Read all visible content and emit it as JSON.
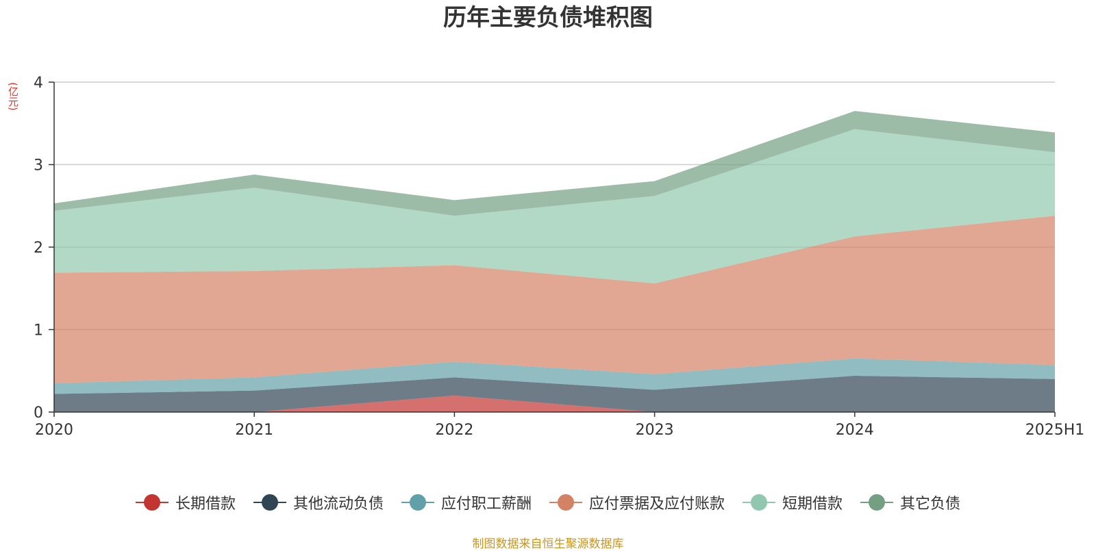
{
  "title": "历年主要负债堆积图",
  "unit_label": "(亿元)",
  "source": "制图数据来自恒生聚源数据库",
  "chart_data": {
    "type": "area",
    "stacked": true,
    "title": "历年主要负债堆积图",
    "ylabel": "(亿元)",
    "x": [
      "2020",
      "2021",
      "2022",
      "2023",
      "2024",
      "2025H1"
    ],
    "ylim": [
      0,
      4
    ],
    "yticks": [
      0,
      1,
      2,
      3,
      4
    ],
    "grid": true,
    "legend_position": "bottom",
    "series": [
      {
        "name": "长期借款",
        "color": "#c23531",
        "values": [
          0.0,
          0.0,
          0.2,
          0.0,
          0.0,
          0.0
        ]
      },
      {
        "name": "其他流动负债",
        "color": "#2f4554",
        "values": [
          0.22,
          0.26,
          0.22,
          0.27,
          0.44,
          0.4
        ]
      },
      {
        "name": "应付职工薪酬",
        "color": "#61a0a8",
        "values": [
          0.13,
          0.16,
          0.19,
          0.19,
          0.21,
          0.17
        ]
      },
      {
        "name": "应付票据及应付账款",
        "color": "#d48265",
        "values": [
          1.34,
          1.29,
          1.17,
          1.1,
          1.48,
          1.81
        ]
      },
      {
        "name": "短期借款",
        "color": "#91c7ae",
        "values": [
          0.75,
          1.01,
          0.6,
          1.06,
          1.3,
          0.77
        ]
      },
      {
        "name": "其它负债",
        "color": "#749f83",
        "values": [
          0.09,
          0.16,
          0.19,
          0.18,
          0.22,
          0.24
        ]
      }
    ]
  }
}
